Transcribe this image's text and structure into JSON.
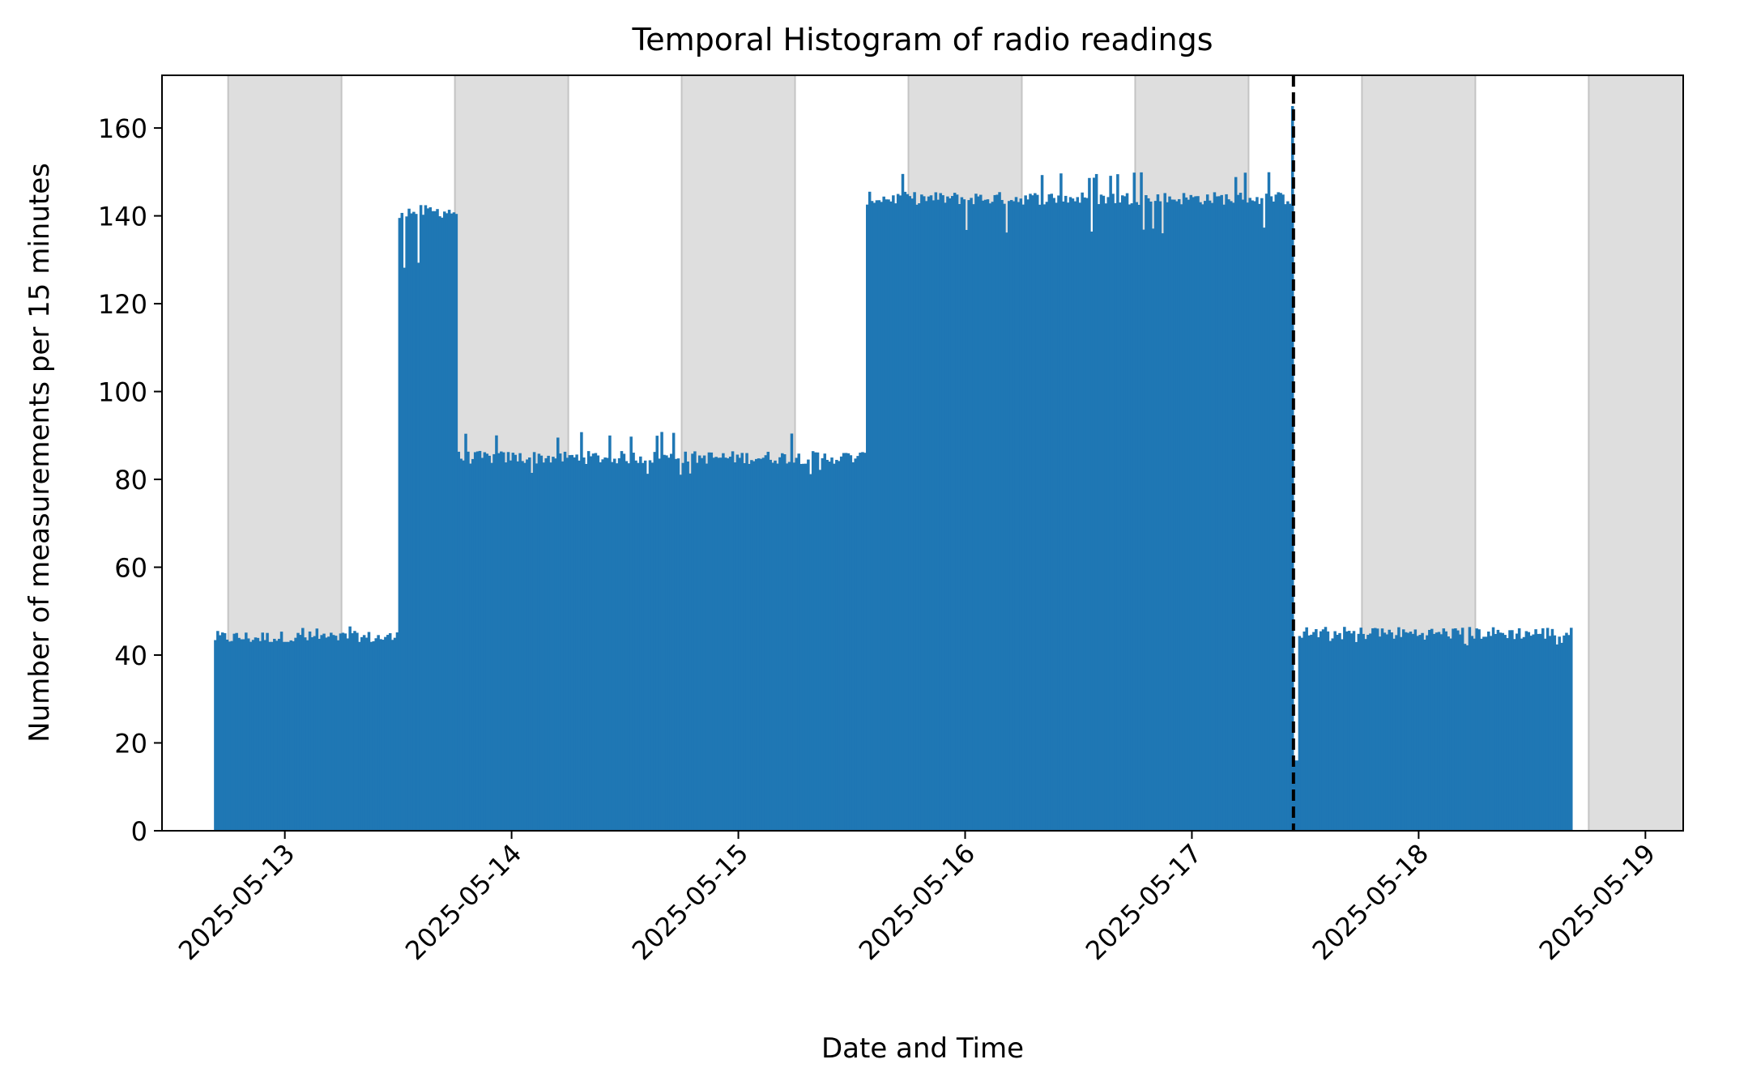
{
  "chart_data": {
    "type": "bar",
    "title": "Temporal Histogram of radio readings",
    "xlabel": "Date and Time",
    "ylabel": "Number of measurements per 15 minutes",
    "bin_minutes": 15,
    "xlim": [
      "2025-05-12 11:00",
      "2025-05-19 04:00"
    ],
    "ylim": [
      0,
      172
    ],
    "x_ticks": [
      "2025-05-13",
      "2025-05-14",
      "2025-05-15",
      "2025-05-16",
      "2025-05-17",
      "2025-05-18",
      "2025-05-19"
    ],
    "y_ticks": [
      0,
      20,
      40,
      60,
      80,
      100,
      120,
      140,
      160
    ],
    "grid": false,
    "legend": "none",
    "night_shading": [
      [
        "2025-05-12 18:00",
        "2025-05-13 06:00"
      ],
      [
        "2025-05-13 18:00",
        "2025-05-14 06:00"
      ],
      [
        "2025-05-14 18:00",
        "2025-05-15 06:00"
      ],
      [
        "2025-05-15 18:00",
        "2025-05-16 06:00"
      ],
      [
        "2025-05-16 18:00",
        "2025-05-17 06:00"
      ],
      [
        "2025-05-17 18:00",
        "2025-05-18 06:00"
      ],
      [
        "2025-05-18 18:00",
        "2025-05-19 04:00"
      ]
    ],
    "vertical_line": {
      "x": "2025-05-17 10:45",
      "style": "dashed"
    },
    "segments": [
      {
        "start": "2025-05-12 16:30",
        "end": "2025-05-13 12:00",
        "typical": 44,
        "min": 43,
        "max": 47
      },
      {
        "start": "2025-05-13 12:00",
        "end": "2025-05-13 18:15",
        "typical": 141,
        "min": 128,
        "max": 151
      },
      {
        "start": "2025-05-13 18:15",
        "end": "2025-05-15 13:30",
        "typical": 85,
        "min": 81,
        "max": 91
      },
      {
        "start": "2025-05-15 13:30",
        "end": "2025-05-17 10:30",
        "typical": 144,
        "min": 136,
        "max": 150
      },
      {
        "start": "2025-05-17 10:30",
        "end": "2025-05-17 10:45",
        "typical": 165,
        "min": 165,
        "max": 165
      },
      {
        "start": "2025-05-17 10:45",
        "end": "2025-05-17 11:15",
        "typical": 16,
        "min": 16,
        "max": 16
      },
      {
        "start": "2025-05-17 11:15",
        "end": "2025-05-18 16:15",
        "typical": 45,
        "min": 42,
        "max": 47
      }
    ],
    "colors": {
      "bars": "#1f77b4",
      "night_shading": "#dedede",
      "vertical_line": "#000000"
    }
  }
}
